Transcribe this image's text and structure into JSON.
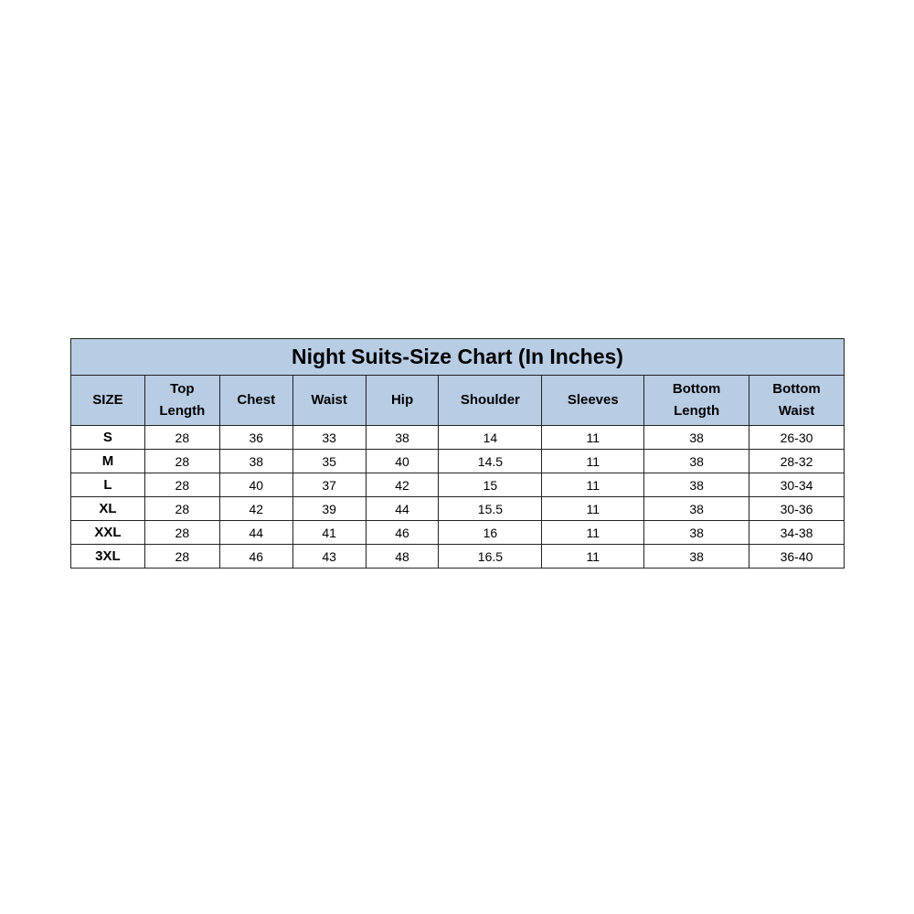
{
  "title": "Night Suits-Size Chart (In Inches)",
  "colors": {
    "header_bg": "#b8cce4",
    "border": "#222222"
  },
  "headers": [
    [
      "SIZE"
    ],
    [
      "Top",
      "Length"
    ],
    [
      "Chest"
    ],
    [
      "Waist"
    ],
    [
      "Hip"
    ],
    [
      "Shoulder"
    ],
    [
      "Sleeves"
    ],
    [
      "Bottom",
      "Length"
    ],
    [
      "Bottom",
      "Waist"
    ]
  ],
  "rows": [
    [
      "S",
      "28",
      "36",
      "33",
      "38",
      "14",
      "11",
      "38",
      "26-30"
    ],
    [
      "M",
      "28",
      "38",
      "35",
      "40",
      "14.5",
      "11",
      "38",
      "28-32"
    ],
    [
      "L",
      "28",
      "40",
      "37",
      "42",
      "15",
      "11",
      "38",
      "30-34"
    ],
    [
      "XL",
      "28",
      "42",
      "39",
      "44",
      "15.5",
      "11",
      "38",
      "30-36"
    ],
    [
      "XXL",
      "28",
      "44",
      "41",
      "46",
      "16",
      "11",
      "38",
      "34-38"
    ],
    [
      "3XL",
      "28",
      "46",
      "43",
      "48",
      "16.5",
      "11",
      "38",
      "36-40"
    ]
  ]
}
